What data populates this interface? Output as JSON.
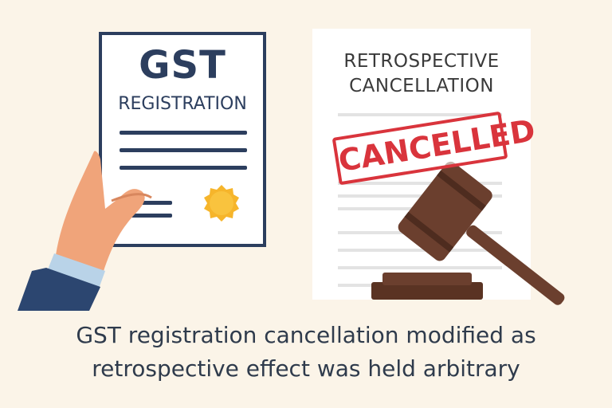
{
  "certificate": {
    "title": "GST",
    "subtitle": "REGISTRATION",
    "seal_color": "#f6b52b",
    "frame_color": "#2c3e5e"
  },
  "document": {
    "title_line1": "RETROSPECTIVE",
    "title_line2": "CANCELLATION",
    "stamp_text": "CANCELLED",
    "stamp_color": "#d9343c"
  },
  "gavel": {
    "color": "#6b3f2e"
  },
  "caption": {
    "line1": "GST registration cancellation modified as",
    "line2": "retrospective effect was held arbitrary"
  },
  "icons": [
    "hand-icon",
    "seal-icon",
    "gavel-icon",
    "stamp-icon"
  ]
}
